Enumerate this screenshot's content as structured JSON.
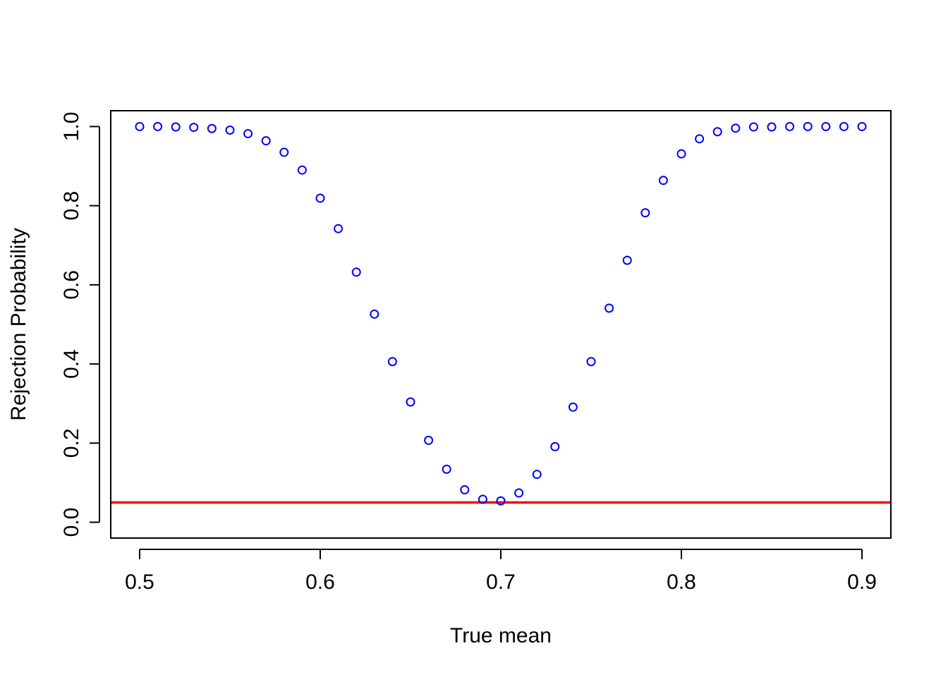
{
  "chart_data": {
    "type": "scatter",
    "title": "",
    "xlabel": "True mean",
    "ylabel": "Rejection Probability",
    "xlim": [
      0.484,
      0.916
    ],
    "ylim": [
      -0.04,
      1.04
    ],
    "xticks": [
      0.5,
      0.6,
      0.7,
      0.8,
      0.9
    ],
    "xtick_labels": [
      "0.5",
      "0.6",
      "0.7",
      "0.8",
      "0.9"
    ],
    "yticks": [
      0.0,
      0.2,
      0.4,
      0.6,
      0.8,
      1.0
    ],
    "ytick_labels": [
      "0.0",
      "0.2",
      "0.4",
      "0.6",
      "0.8",
      "1.0"
    ],
    "grid": false,
    "point_color": "#0000ff",
    "reference_line": {
      "y": 0.05,
      "color": "#ff0000"
    },
    "x": [
      0.5,
      0.51,
      0.52,
      0.53,
      0.54,
      0.55,
      0.56,
      0.57,
      0.58,
      0.59,
      0.6,
      0.61,
      0.62,
      0.63,
      0.64,
      0.65,
      0.66,
      0.67,
      0.68,
      0.69,
      0.7,
      0.71,
      0.72,
      0.73,
      0.74,
      0.75,
      0.76,
      0.77,
      0.78,
      0.79,
      0.8,
      0.81,
      0.82,
      0.83,
      0.84,
      0.85,
      0.86,
      0.87,
      0.88,
      0.89,
      0.9
    ],
    "y": [
      1.0,
      1.0,
      0.999,
      0.998,
      0.995,
      0.991,
      0.982,
      0.964,
      0.935,
      0.89,
      0.819,
      0.742,
      0.632,
      0.526,
      0.406,
      0.304,
      0.207,
      0.134,
      0.082,
      0.058,
      0.054,
      0.074,
      0.121,
      0.191,
      0.291,
      0.406,
      0.541,
      0.662,
      0.782,
      0.864,
      0.931,
      0.969,
      0.987,
      0.996,
      0.999,
      0.999,
      1.0,
      1.0,
      1.0,
      1.0,
      1.0
    ]
  }
}
